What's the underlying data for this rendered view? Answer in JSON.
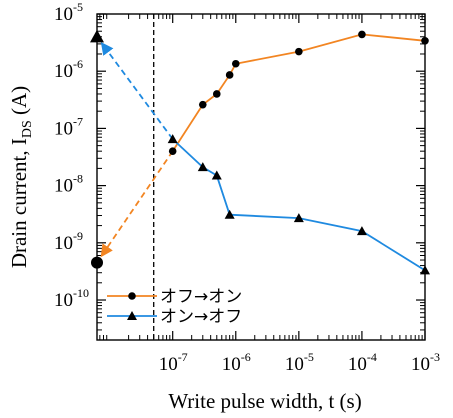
{
  "chart_data": {
    "type": "line",
    "xlabel": "Write pulse width, t (s)",
    "ylabel_prefix": "Drain current, I",
    "ylabel_subscript": "DS",
    "ylabel_suffix": " (A)",
    "x_scale": "log",
    "y_scale": "log",
    "xlim": [
      1e-08,
      0.001
    ],
    "ylim": [
      2e-11,
      1e-05
    ],
    "x_ticks": [
      {
        "value": 1e-07,
        "base": "10",
        "exp": "-7"
      },
      {
        "value": 1e-06,
        "base": "10",
        "exp": "-6"
      },
      {
        "value": 1e-05,
        "base": "10",
        "exp": "-5"
      },
      {
        "value": 0.0001,
        "base": "10",
        "exp": "-4"
      },
      {
        "value": 0.001,
        "base": "10",
        "exp": "-3"
      }
    ],
    "y_ticks": [
      {
        "value": 1e-10,
        "base": "10",
        "exp": "-10"
      },
      {
        "value": 1e-09,
        "base": "10",
        "exp": "-9"
      },
      {
        "value": 1e-08,
        "base": "10",
        "exp": "-8"
      },
      {
        "value": 1e-07,
        "base": "10",
        "exp": "-7"
      },
      {
        "value": 1e-06,
        "base": "10",
        "exp": "-6"
      },
      {
        "value": 1e-05,
        "base": "10",
        "exp": "-5"
      }
    ],
    "vline_x": 5e-08,
    "series": [
      {
        "name": "オフ→オン",
        "color": "#f28522",
        "marker": "circle",
        "x": [
          1e-07,
          3e-07,
          5e-07,
          8e-07,
          1e-06,
          1e-05,
          0.0001,
          0.001
        ],
        "y": [
          4e-08,
          2.6e-07,
          4e-07,
          8.6e-07,
          1.35e-06,
          2.2e-06,
          4.4e-06,
          3.4e-06
        ],
        "initial_y": 4.5e-10
      },
      {
        "name": "オン→オフ",
        "color": "#1f8ae0",
        "marker": "triangle",
        "x": [
          1e-07,
          3e-07,
          5e-07,
          8e-07,
          1e-05,
          0.0001,
          0.001
        ],
        "y": [
          6.5e-08,
          2.1e-08,
          1.5e-08,
          3.1e-09,
          2.7e-09,
          1.6e-09,
          3.3e-10
        ],
        "initial_y": 4e-06
      }
    ],
    "legend_position": "bottom-left"
  }
}
